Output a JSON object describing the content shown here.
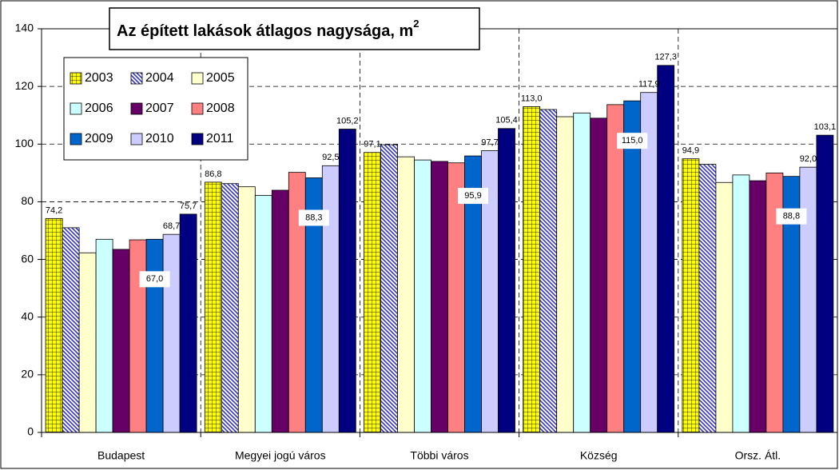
{
  "chart_data": {
    "type": "bar",
    "title": "Az épített lakások átlagos nagysága, m",
    "title_superscript": "2",
    "categories": [
      "Budapest",
      "Megyei jogú város",
      "Többi város",
      "Község",
      "Orsz. Átl."
    ],
    "ylim": [
      0,
      140
    ],
    "yticks": [
      0,
      20,
      40,
      60,
      80,
      100,
      120,
      140
    ],
    "grid": true,
    "series": [
      {
        "name": "2003",
        "color": "#ffff00",
        "pattern": "grid",
        "values": [
          74.2,
          86.8,
          97.1,
          113.0,
          94.9
        ],
        "value_labels": [
          "74,2",
          "86,8",
          "97,1",
          "113,0",
          "94,9"
        ]
      },
      {
        "name": "2004",
        "color": "#3333cc",
        "pattern": "hatch",
        "values": [
          71.0,
          86.3,
          99.8,
          112.0,
          93.0
        ]
      },
      {
        "name": "2005",
        "color": "#ffffcc",
        "values": [
          62.3,
          85.2,
          95.6,
          109.5,
          86.7
        ]
      },
      {
        "name": "2006",
        "color": "#ccffff",
        "values": [
          67.0,
          82.2,
          94.5,
          110.8,
          89.3
        ]
      },
      {
        "name": "2007",
        "color": "#660066",
        "values": [
          63.5,
          84.0,
          94.0,
          109.0,
          87.3
        ]
      },
      {
        "name": "2008",
        "color": "#ff8080",
        "values": [
          66.8,
          90.2,
          93.5,
          113.7,
          90.0
        ]
      },
      {
        "name": "2009",
        "color": "#0066cc",
        "values": [
          67.0,
          88.3,
          95.9,
          115.0,
          88.8
        ],
        "value_labels": [
          "67,0",
          "88,3",
          "95,9",
          "115,0",
          "88,8"
        ]
      },
      {
        "name": "2010",
        "color": "#ccccff",
        "values": [
          68.7,
          92.5,
          97.7,
          117.9,
          92.0
        ],
        "value_labels": [
          "68,7",
          "92,5",
          "97,7",
          "117,9",
          "92,0"
        ]
      },
      {
        "name": "2011",
        "color": "#000080",
        "values": [
          75.7,
          105.2,
          105.4,
          127.3,
          103.1
        ],
        "value_labels": [
          "75,7",
          "105,2",
          "105,4",
          "127,3",
          "103,1"
        ]
      }
    ]
  }
}
